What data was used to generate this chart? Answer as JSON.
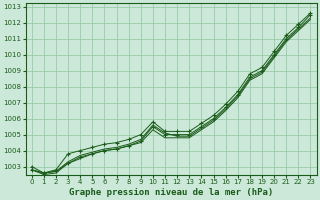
{
  "title": "Graphe pression niveau de la mer (hPa)",
  "bg_color": "#cce8d8",
  "grid_color": "#99ccaa",
  "line_color": "#1a5c1a",
  "x_ticks": [
    0,
    1,
    2,
    3,
    4,
    5,
    6,
    7,
    8,
    9,
    10,
    11,
    12,
    13,
    14,
    15,
    16,
    17,
    18,
    19,
    20,
    21,
    22,
    23
  ],
  "y_min": 1002.5,
  "y_max": 1013.2,
  "y_ticks": [
    1003,
    1004,
    1005,
    1006,
    1007,
    1008,
    1009,
    1010,
    1011,
    1012,
    1013
  ],
  "series": [
    [
      1002.8,
      1002.6,
      1002.7,
      1003.2,
      1003.6,
      1003.8,
      1004.0,
      1004.1,
      1004.3,
      1004.6,
      1005.5,
      1005.0,
      1005.0,
      1005.0,
      1005.5,
      1006.0,
      1006.7,
      1007.5,
      1008.6,
      1009.0,
      1010.0,
      1011.0,
      1011.7,
      1012.5
    ],
    [
      1002.8,
      1002.6,
      1002.7,
      1003.3,
      1003.7,
      1003.9,
      1004.1,
      1004.2,
      1004.4,
      1004.7,
      1005.6,
      1005.1,
      1004.9,
      1004.9,
      1005.4,
      1005.9,
      1006.6,
      1007.4,
      1008.5,
      1008.9,
      1009.9,
      1010.9,
      1011.6,
      1012.3
    ],
    [
      1002.8,
      1002.5,
      1002.6,
      1003.2,
      1003.5,
      1003.8,
      1004.0,
      1004.1,
      1004.3,
      1004.5,
      1005.3,
      1004.8,
      1004.8,
      1004.8,
      1005.3,
      1005.8,
      1006.5,
      1007.3,
      1008.4,
      1008.8,
      1009.8,
      1010.8,
      1011.5,
      1012.2
    ],
    [
      1003.0,
      1002.6,
      1002.8,
      1003.8,
      1004.0,
      1004.2,
      1004.4,
      1004.5,
      1004.7,
      1005.0,
      1005.8,
      1005.2,
      1005.2,
      1005.2,
      1005.7,
      1006.2,
      1006.9,
      1007.7,
      1008.8,
      1009.2,
      1010.2,
      1011.2,
      1011.9,
      1012.6
    ]
  ],
  "marker_series": [
    0,
    3
  ],
  "xlabel_fontsize": 6.5,
  "tick_fontsize": 5.0
}
